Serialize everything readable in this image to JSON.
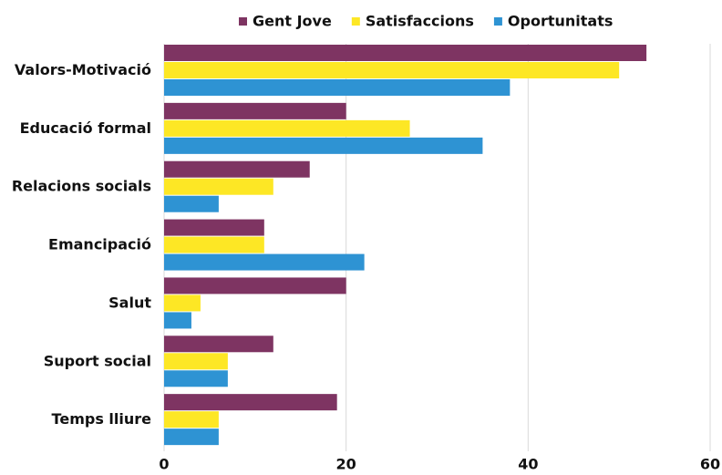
{
  "chart_data": {
    "type": "hbar",
    "categories": [
      "Valors-Motivació",
      "Educació formal",
      "Relacions socials",
      "Emancipació",
      "Salut",
      "Suport social",
      "Temps lliure"
    ],
    "series": [
      {
        "name": "Gent Jove",
        "color": "#7e3462",
        "values": [
          53,
          20,
          16,
          11,
          20,
          12,
          19
        ]
      },
      {
        "name": "Satisfaccions",
        "color": "#fde725",
        "values": [
          50,
          27,
          12,
          11,
          4,
          7,
          6
        ]
      },
      {
        "name": "Oportunitats",
        "color": "#2e93d3",
        "values": [
          38,
          35,
          6,
          22,
          3,
          7,
          6
        ]
      }
    ],
    "xlim": [
      0,
      60
    ],
    "xticks": [
      0,
      20,
      40,
      60
    ],
    "grid": true,
    "legend": "top"
  }
}
